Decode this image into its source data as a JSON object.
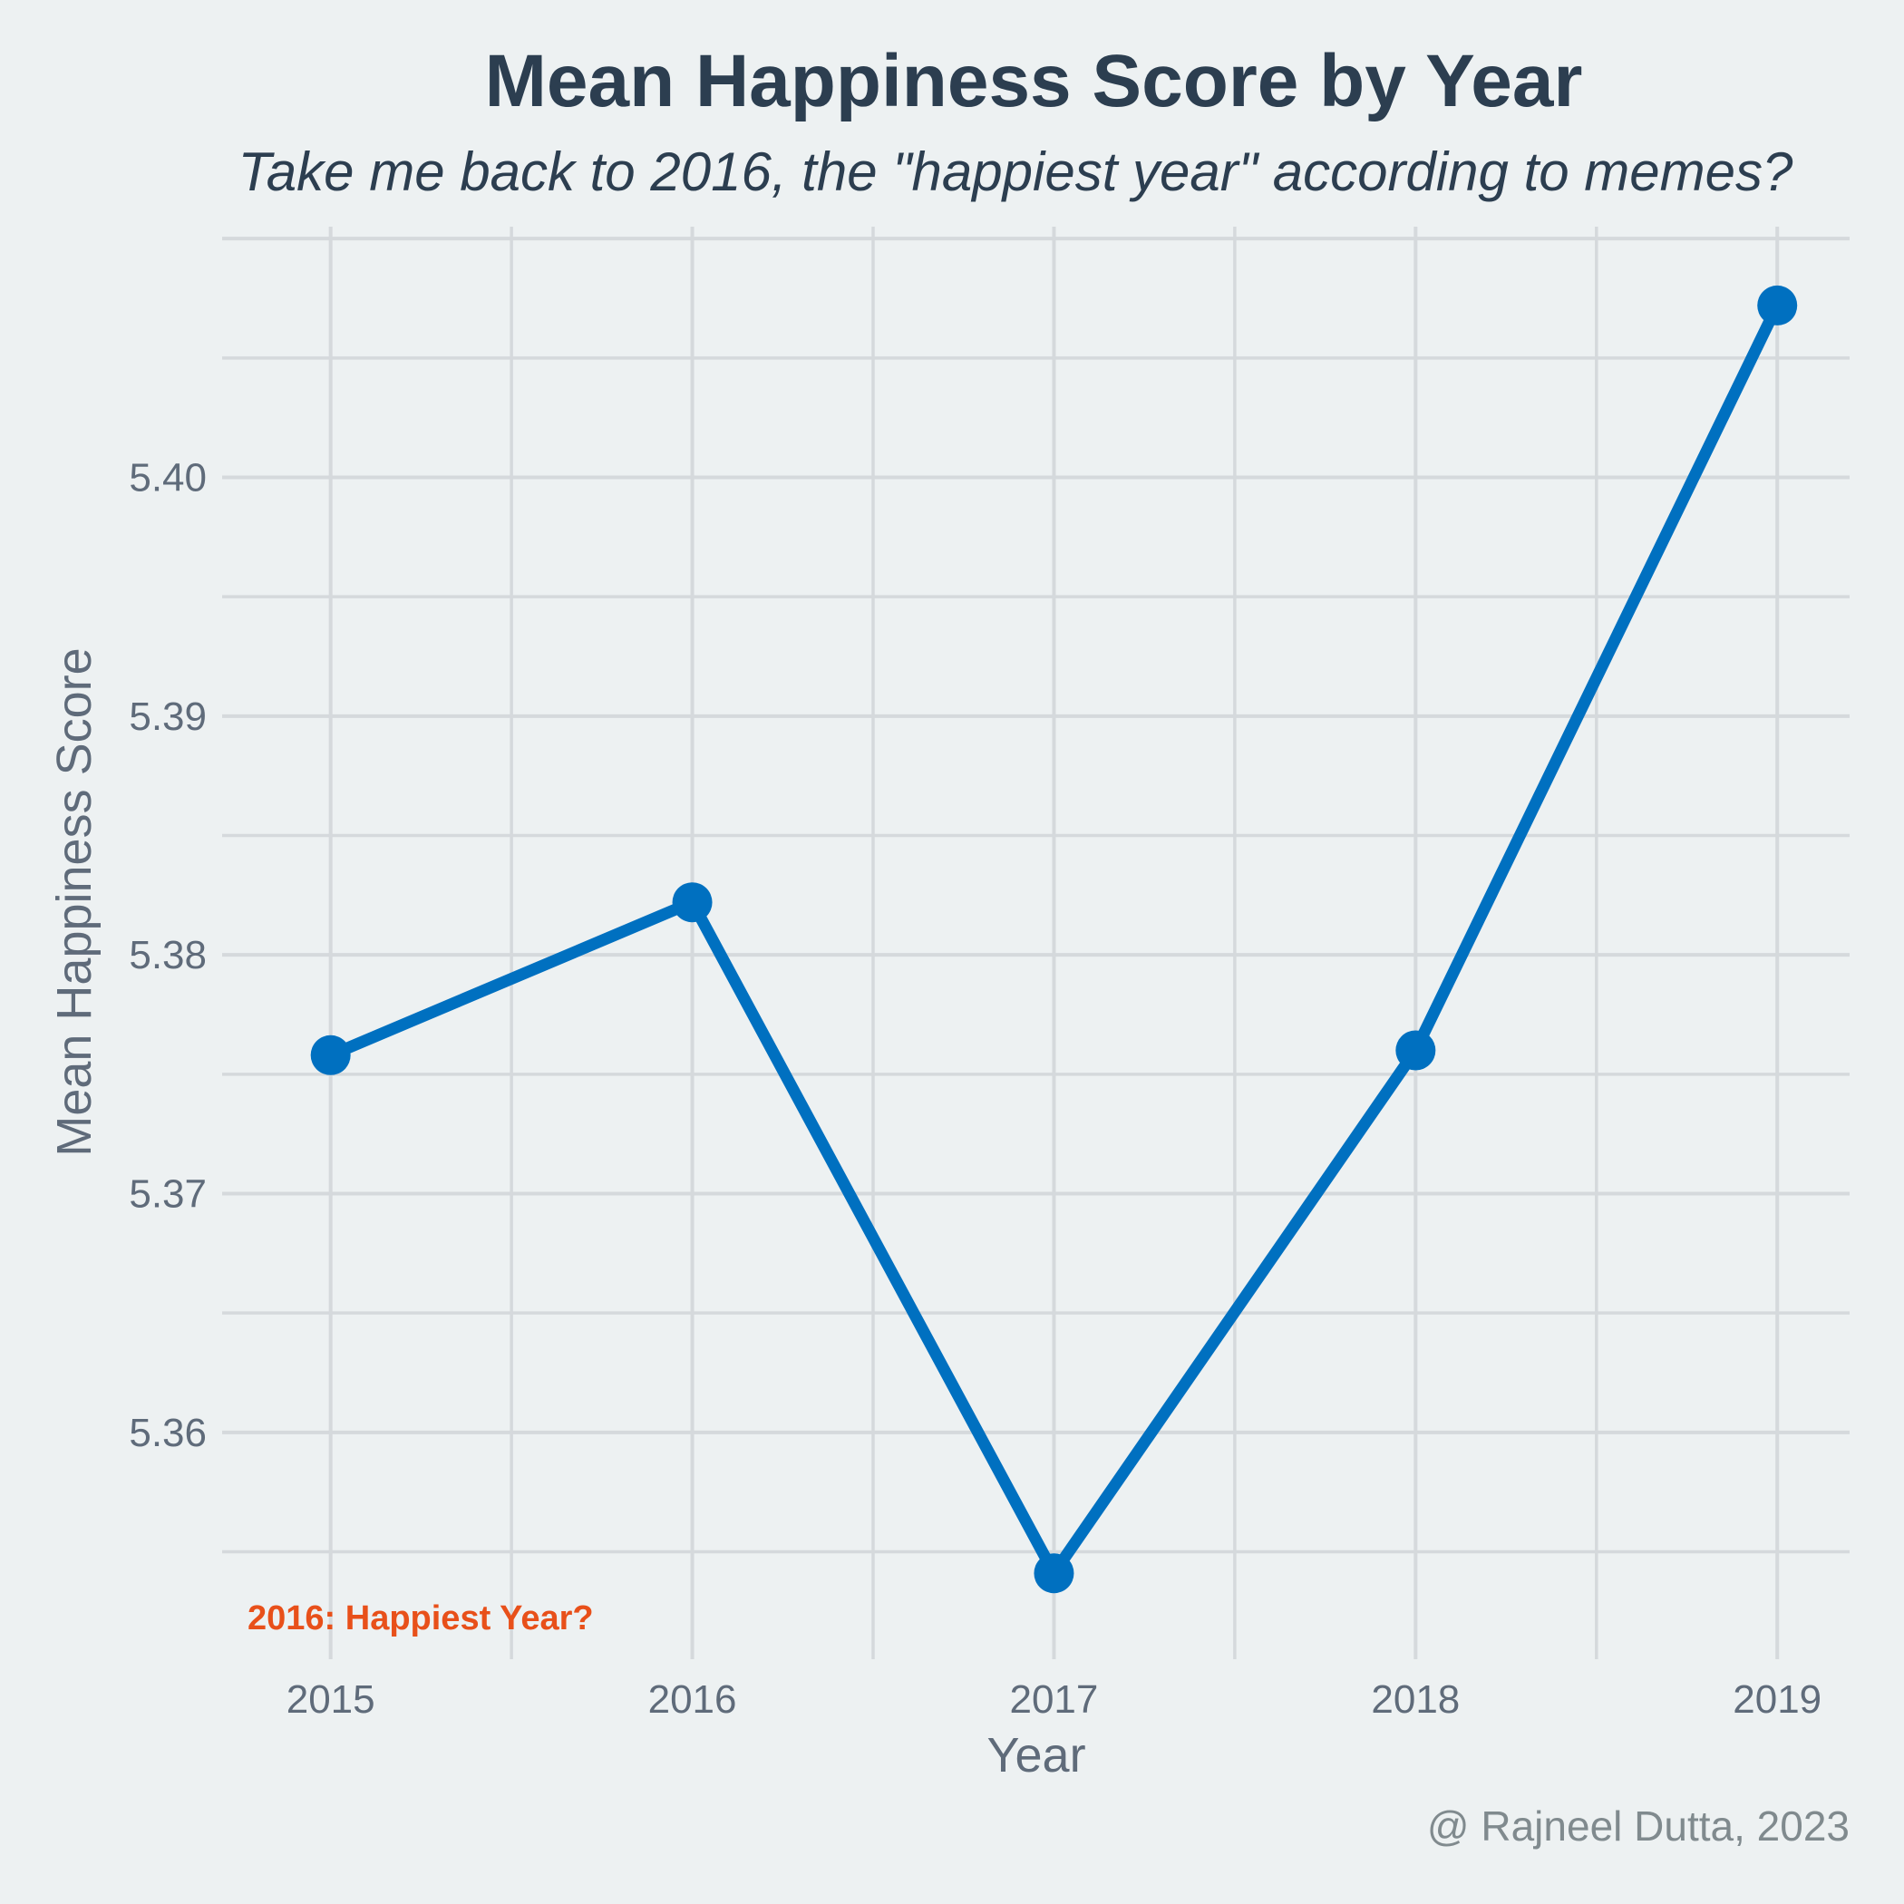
{
  "chart_data": {
    "type": "line",
    "title": "Mean Happiness Score by Year",
    "subtitle": "Take me back to 2016, the \"happiest year\" according to memes?",
    "xlabel": "Year",
    "ylabel": "Mean Happiness Score",
    "x": [
      2015,
      2016,
      2017,
      2018,
      2019
    ],
    "series": [
      {
        "values": [
          5.3758,
          5.3822,
          5.3541,
          5.376,
          5.4072
        ]
      }
    ],
    "x_ticks": [
      "2015",
      "2016",
      "2017",
      "2018",
      "2019"
    ],
    "y_ticks": [
      "5.36",
      "5.37",
      "5.38",
      "5.39",
      "5.40"
    ],
    "xlim": [
      2014.7,
      2019.2
    ],
    "ylim": [
      5.3505,
      5.4105
    ],
    "grid": true,
    "legend": "none",
    "line_color": "#0070C0",
    "annotation": {
      "text": "2016: Happiest Year?",
      "color": "#E8501A"
    },
    "caption": "@ Rajneel Dutta, 2023"
  }
}
